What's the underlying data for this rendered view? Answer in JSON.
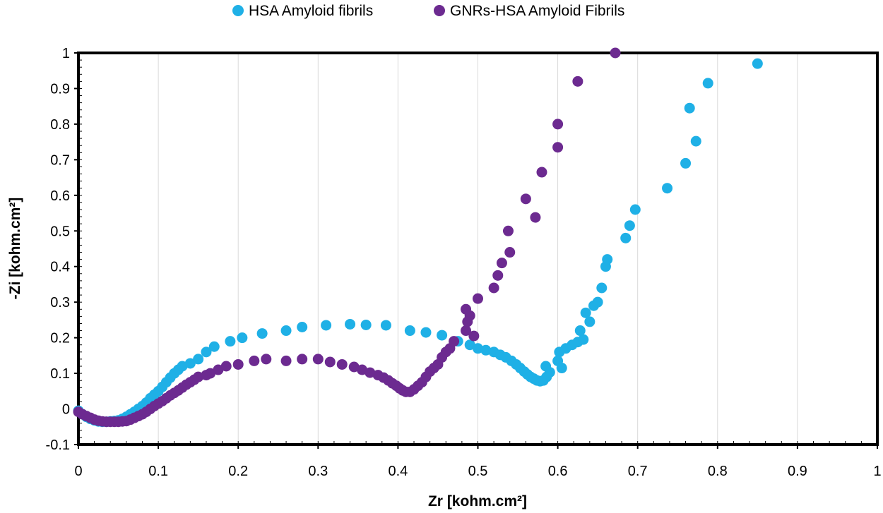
{
  "chart_data": {
    "type": "scatter",
    "xlabel": "Zr [kohm.cm²]",
    "ylabel": "-Zi [kohm.cm²]",
    "xlim": [
      0,
      1
    ],
    "ylim": [
      -0.1,
      1
    ],
    "xticks": [
      0,
      0.1,
      0.2,
      0.3,
      0.4,
      0.5,
      0.6,
      0.7,
      0.8,
      0.9,
      1
    ],
    "yticks": [
      -0.1,
      0,
      0.1,
      0.2,
      0.3,
      0.4,
      0.5,
      0.6,
      0.7,
      0.8,
      0.9,
      1
    ],
    "xtick_labels": [
      "0",
      "0.1",
      "0.2",
      "0.3",
      "0.4",
      "0.5",
      "0.6",
      "0.7",
      "0.8",
      "0.9",
      "1"
    ],
    "ytick_labels": [
      "-0.1",
      "0",
      "0.1",
      "0.2",
      "0.3",
      "0.4",
      "0.5",
      "0.6",
      "0.7",
      "0.8",
      "0.9",
      "1"
    ],
    "grid": "vertical",
    "legend_position": "top",
    "series": [
      {
        "name": "HSA Amyloid fibrils",
        "color": "#1fb0e6",
        "points": [
          [
            0.0,
            -0.005
          ],
          [
            0.005,
            -0.015
          ],
          [
            0.01,
            -0.022
          ],
          [
            0.015,
            -0.028
          ],
          [
            0.02,
            -0.032
          ],
          [
            0.025,
            -0.035
          ],
          [
            0.03,
            -0.036
          ],
          [
            0.035,
            -0.036
          ],
          [
            0.04,
            -0.035
          ],
          [
            0.045,
            -0.034
          ],
          [
            0.05,
            -0.032
          ],
          [
            0.055,
            -0.028
          ],
          [
            0.06,
            -0.022
          ],
          [
            0.065,
            -0.015
          ],
          [
            0.07,
            -0.008
          ],
          [
            0.075,
            0.0
          ],
          [
            0.08,
            0.008
          ],
          [
            0.085,
            0.018
          ],
          [
            0.09,
            0.03
          ],
          [
            0.095,
            0.04
          ],
          [
            0.1,
            0.05
          ],
          [
            0.105,
            0.062
          ],
          [
            0.11,
            0.075
          ],
          [
            0.115,
            0.088
          ],
          [
            0.12,
            0.1
          ],
          [
            0.125,
            0.11
          ],
          [
            0.13,
            0.12
          ],
          [
            0.14,
            0.128
          ],
          [
            0.15,
            0.14
          ],
          [
            0.16,
            0.16
          ],
          [
            0.17,
            0.175
          ],
          [
            0.19,
            0.19
          ],
          [
            0.205,
            0.2
          ],
          [
            0.23,
            0.212
          ],
          [
            0.26,
            0.22
          ],
          [
            0.28,
            0.23
          ],
          [
            0.31,
            0.235
          ],
          [
            0.34,
            0.238
          ],
          [
            0.36,
            0.236
          ],
          [
            0.385,
            0.235
          ],
          [
            0.415,
            0.22
          ],
          [
            0.435,
            0.215
          ],
          [
            0.455,
            0.207
          ],
          [
            0.475,
            0.19
          ],
          [
            0.49,
            0.18
          ],
          [
            0.5,
            0.17
          ],
          [
            0.51,
            0.165
          ],
          [
            0.52,
            0.16
          ],
          [
            0.528,
            0.152
          ],
          [
            0.535,
            0.145
          ],
          [
            0.542,
            0.135
          ],
          [
            0.548,
            0.125
          ],
          [
            0.553,
            0.115
          ],
          [
            0.558,
            0.105
          ],
          [
            0.562,
            0.097
          ],
          [
            0.566,
            0.09
          ],
          [
            0.57,
            0.085
          ],
          [
            0.574,
            0.08
          ],
          [
            0.578,
            0.078
          ],
          [
            0.582,
            0.08
          ],
          [
            0.586,
            0.09
          ],
          [
            0.59,
            0.103
          ],
          [
            0.585,
            0.12
          ],
          [
            0.6,
            0.135
          ],
          [
            0.605,
            0.115
          ],
          [
            0.602,
            0.16
          ],
          [
            0.61,
            0.17
          ],
          [
            0.618,
            0.18
          ],
          [
            0.625,
            0.188
          ],
          [
            0.632,
            0.195
          ],
          [
            0.628,
            0.22
          ],
          [
            0.64,
            0.245
          ],
          [
            0.635,
            0.27
          ],
          [
            0.645,
            0.29
          ],
          [
            0.65,
            0.3
          ],
          [
            0.655,
            0.34
          ],
          [
            0.66,
            0.4
          ],
          [
            0.662,
            0.42
          ],
          [
            0.685,
            0.48
          ],
          [
            0.69,
            0.515
          ],
          [
            0.697,
            0.56
          ],
          [
            0.737,
            0.62
          ],
          [
            0.76,
            0.69
          ],
          [
            0.773,
            0.752
          ],
          [
            0.765,
            0.845
          ],
          [
            0.788,
            0.915
          ],
          [
            0.85,
            0.97
          ]
        ]
      },
      {
        "name": "GNRs-HSA Amyloid Fibrils",
        "color": "#6c2a90",
        "points": [
          [
            0.0,
            -0.008
          ],
          [
            0.005,
            -0.015
          ],
          [
            0.01,
            -0.02
          ],
          [
            0.015,
            -0.025
          ],
          [
            0.02,
            -0.03
          ],
          [
            0.025,
            -0.033
          ],
          [
            0.03,
            -0.035
          ],
          [
            0.035,
            -0.036
          ],
          [
            0.04,
            -0.036
          ],
          [
            0.045,
            -0.036
          ],
          [
            0.05,
            -0.036
          ],
          [
            0.055,
            -0.035
          ],
          [
            0.06,
            -0.034
          ],
          [
            0.065,
            -0.03
          ],
          [
            0.07,
            -0.025
          ],
          [
            0.075,
            -0.02
          ],
          [
            0.08,
            -0.015
          ],
          [
            0.085,
            -0.008
          ],
          [
            0.09,
            0.0
          ],
          [
            0.095,
            0.008
          ],
          [
            0.1,
            0.015
          ],
          [
            0.105,
            0.022
          ],
          [
            0.11,
            0.03
          ],
          [
            0.115,
            0.038
          ],
          [
            0.12,
            0.045
          ],
          [
            0.125,
            0.052
          ],
          [
            0.13,
            0.06
          ],
          [
            0.135,
            0.068
          ],
          [
            0.14,
            0.075
          ],
          [
            0.145,
            0.082
          ],
          [
            0.15,
            0.09
          ],
          [
            0.16,
            0.095
          ],
          [
            0.165,
            0.1
          ],
          [
            0.175,
            0.11
          ],
          [
            0.185,
            0.12
          ],
          [
            0.2,
            0.125
          ],
          [
            0.22,
            0.135
          ],
          [
            0.235,
            0.14
          ],
          [
            0.26,
            0.135
          ],
          [
            0.28,
            0.14
          ],
          [
            0.3,
            0.14
          ],
          [
            0.315,
            0.132
          ],
          [
            0.33,
            0.125
          ],
          [
            0.345,
            0.118
          ],
          [
            0.355,
            0.11
          ],
          [
            0.365,
            0.102
          ],
          [
            0.375,
            0.095
          ],
          [
            0.382,
            0.088
          ],
          [
            0.388,
            0.08
          ],
          [
            0.393,
            0.072
          ],
          [
            0.398,
            0.065
          ],
          [
            0.402,
            0.058
          ],
          [
            0.406,
            0.052
          ],
          [
            0.41,
            0.048
          ],
          [
            0.415,
            0.048
          ],
          [
            0.42,
            0.055
          ],
          [
            0.425,
            0.065
          ],
          [
            0.43,
            0.075
          ],
          [
            0.435,
            0.09
          ],
          [
            0.44,
            0.105
          ],
          [
            0.445,
            0.115
          ],
          [
            0.45,
            0.125
          ],
          [
            0.455,
            0.145
          ],
          [
            0.46,
            0.16
          ],
          [
            0.465,
            0.17
          ],
          [
            0.47,
            0.19
          ],
          [
            0.485,
            0.22
          ],
          [
            0.487,
            0.245
          ],
          [
            0.49,
            0.262
          ],
          [
            0.485,
            0.28
          ],
          [
            0.495,
            0.205
          ],
          [
            0.5,
            0.31
          ],
          [
            0.52,
            0.34
          ],
          [
            0.525,
            0.375
          ],
          [
            0.53,
            0.41
          ],
          [
            0.54,
            0.44
          ],
          [
            0.538,
            0.5
          ],
          [
            0.572,
            0.538
          ],
          [
            0.56,
            0.59
          ],
          [
            0.58,
            0.665
          ],
          [
            0.6,
            0.735
          ],
          [
            0.6,
            0.8
          ],
          [
            0.625,
            0.92
          ],
          [
            0.672,
            1.0
          ]
        ]
      }
    ]
  }
}
